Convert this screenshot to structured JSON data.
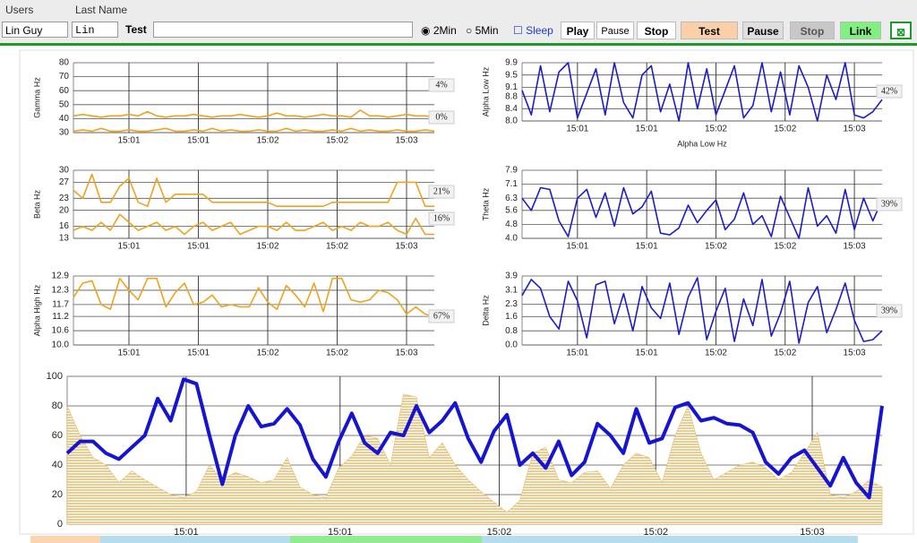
{
  "toolbar": {
    "users_label": "Users",
    "lastname_label": "Last Name",
    "user": "Lin Guy",
    "lastname": "Lin",
    "session_label": "Test",
    "radio_2min": "2Min",
    "radio_5min": "5Min",
    "sleep": "Sleep",
    "play": "Play",
    "pause": "Pause",
    "stop": "Stop",
    "test": "Test",
    "pause2": "Pause",
    "stop2": "Stop",
    "link": "Link"
  },
  "chart_data": [
    {
      "type": "line",
      "ylabel": "Gamma Hz",
      "ylim": [
        30,
        80
      ],
      "yticks": [
        30,
        40,
        50,
        60,
        70,
        80
      ],
      "xlim": [
        0,
        39
      ],
      "xticks": [
        {
          "value": 6,
          "label": "15:01"
        },
        {
          "value": 13.5,
          "label": "15:01"
        },
        {
          "value": 21,
          "label": "15:02"
        },
        {
          "value": 28.5,
          "label": "15:02"
        },
        {
          "value": 36,
          "label": "15:03"
        }
      ],
      "annotations": [
        "4%",
        "0%"
      ],
      "grid": true,
      "series": [
        {
          "color": "#f0a21e",
          "values": [
            42,
            43,
            42,
            41,
            42,
            42,
            43,
            42,
            45,
            42,
            41,
            42,
            42,
            43,
            42,
            41,
            42,
            42,
            43,
            42,
            41,
            42,
            44,
            42,
            42,
            41,
            42,
            43,
            42,
            42,
            41,
            46,
            42,
            42,
            41,
            42,
            43,
            42,
            42,
            41
          ]
        },
        {
          "color": "#f0a21e",
          "values": [
            31,
            32,
            31,
            33,
            31,
            31,
            32,
            31,
            31,
            32,
            33,
            31,
            31,
            32,
            31,
            33,
            31,
            32,
            31,
            31,
            32,
            31,
            31,
            33,
            31,
            32,
            31,
            31,
            32,
            31,
            33,
            31,
            32,
            31,
            31,
            32,
            31,
            31,
            32,
            31
          ]
        }
      ]
    },
    {
      "type": "line",
      "ylabel": "Alpha Low Hz",
      "xlabel": "Alpha Low Hz",
      "ylim": [
        8.0,
        9.9
      ],
      "yticks": [
        {
          "value": 8.0,
          "label": "8.0"
        },
        {
          "value": 8.4,
          "label": "8.4"
        },
        8.8,
        9.1,
        9.5,
        9.9
      ],
      "xlim": [
        0,
        39
      ],
      "xticks": [
        {
          "value": 6,
          "label": "15:01"
        },
        {
          "value": 13.5,
          "label": "15:01"
        },
        {
          "value": 21,
          "label": "15:02"
        },
        {
          "value": 28.5,
          "label": "15:02"
        },
        {
          "value": 36,
          "label": "15:03"
        }
      ],
      "annotations": [
        "42%"
      ],
      "grid": true,
      "series": [
        {
          "color": "#1c1cc8",
          "values": [
            9.0,
            8.2,
            9.8,
            8.3,
            9.6,
            9.9,
            8.1,
            8.9,
            9.7,
            8.2,
            9.9,
            8.6,
            8.1,
            9.5,
            9.8,
            8.3,
            9.2,
            8.0,
            9.9,
            8.4,
            9.7,
            8.2,
            9.0,
            9.8,
            8.1,
            8.5,
            9.9,
            8.3,
            9.6,
            8.2,
            9.8,
            9.1,
            8.0,
            9.5,
            8.7,
            9.9,
            8.2,
            8.1,
            8.3,
            8.7
          ]
        }
      ]
    },
    {
      "type": "line",
      "ylabel": "Beta Hz",
      "ylim": [
        13,
        30
      ],
      "yticks": [
        13,
        16,
        20,
        23,
        27,
        30
      ],
      "xlim": [
        0,
        39
      ],
      "xticks": [
        {
          "value": 6,
          "label": "15:01"
        },
        {
          "value": 13.5,
          "label": "15:01"
        },
        {
          "value": 21,
          "label": "15:02"
        },
        {
          "value": 28.5,
          "label": "15:02"
        },
        {
          "value": 36,
          "label": "15:03"
        }
      ],
      "annotations": [
        "21%",
        "16%"
      ],
      "grid": true,
      "series": [
        {
          "color": "#f0a21e",
          "values": [
            25,
            23,
            29,
            22,
            22,
            26,
            28,
            22,
            21,
            28,
            22,
            24,
            24,
            24,
            24,
            22,
            22,
            22,
            22,
            22,
            22,
            22,
            21,
            21,
            21,
            21,
            21,
            21,
            22,
            22,
            22,
            22,
            22,
            22,
            22,
            27,
            27,
            27,
            21,
            21
          ]
        },
        {
          "color": "#f0a21e",
          "values": [
            15,
            16,
            15,
            17,
            15,
            19,
            17,
            15,
            16,
            17,
            15,
            16,
            14,
            16,
            17,
            15,
            16,
            17,
            14,
            15,
            16,
            16,
            15,
            17,
            15,
            15,
            16,
            17,
            15,
            16,
            15,
            17,
            16,
            16,
            17,
            15,
            14,
            18,
            14,
            14
          ]
        }
      ]
    },
    {
      "type": "line",
      "ylabel": "Theta Hz",
      "ylim": [
        4.0,
        7.9
      ],
      "yticks": [
        {
          "value": 4.0,
          "label": "4.0"
        },
        4.8,
        5.6,
        6.3,
        7.1,
        7.9
      ],
      "xlim": [
        0,
        39
      ],
      "xticks": [
        {
          "value": 6,
          "label": "15:01"
        },
        {
          "value": 13.5,
          "label": "15:01"
        },
        {
          "value": 21,
          "label": "15:02"
        },
        {
          "value": 28.5,
          "label": "15:02"
        },
        {
          "value": 36,
          "label": "15:03"
        }
      ],
      "annotations": [
        "39%"
      ],
      "grid": true,
      "series": [
        {
          "color": "#1c1cc8",
          "values": [
            6.3,
            5.6,
            6.9,
            6.8,
            5.0,
            4.1,
            6.3,
            6.8,
            5.2,
            6.6,
            4.7,
            6.9,
            5.4,
            5.8,
            6.7,
            4.3,
            4.2,
            4.6,
            5.9,
            4.9,
            5.6,
            6.2,
            4.5,
            5.1,
            6.6,
            4.8,
            5.3,
            4.1,
            6.4,
            5.2,
            4.0,
            6.9,
            4.7,
            5.3,
            4.3,
            6.8,
            4.5,
            6.3,
            5.0,
            6.2
          ]
        }
      ]
    },
    {
      "type": "line",
      "ylabel": "Alpha High Hz",
      "ylim": [
        10.0,
        12.9
      ],
      "yticks": [
        {
          "value": 10.0,
          "label": "10.0"
        },
        10.6,
        11.2,
        11.7,
        12.3,
        12.9
      ],
      "xlim": [
        0,
        39
      ],
      "xticks": [
        {
          "value": 6,
          "label": "15:01"
        },
        {
          "value": 13.5,
          "label": "15:01"
        },
        {
          "value": 21,
          "label": "15:02"
        },
        {
          "value": 28.5,
          "label": "15:02"
        },
        {
          "value": 36,
          "label": "15:03"
        }
      ],
      "annotations": [
        "67%"
      ],
      "grid": true,
      "series": [
        {
          "color": "#f0a21e",
          "values": [
            12.0,
            12.6,
            12.7,
            11.7,
            11.5,
            12.8,
            12.3,
            11.9,
            12.8,
            12.8,
            11.6,
            12.2,
            12.6,
            11.7,
            11.8,
            12.1,
            11.6,
            11.7,
            11.6,
            11.6,
            12.4,
            11.8,
            11.5,
            12.5,
            12.1,
            11.6,
            12.6,
            11.4,
            12.8,
            12.8,
            11.9,
            11.8,
            11.9,
            12.3,
            12.2,
            11.9,
            11.3,
            11.6,
            11.3,
            11.2
          ]
        }
      ]
    },
    {
      "type": "line",
      "ylabel": "Delta Hz",
      "ylim": [
        0.0,
        3.9
      ],
      "yticks": [
        {
          "value": 0.0,
          "label": "0.0"
        },
        0.8,
        1.6,
        2.3,
        3.1,
        3.9
      ],
      "xlim": [
        0,
        39
      ],
      "xticks": [
        {
          "value": 6,
          "label": "15:01"
        },
        {
          "value": 13.5,
          "label": "15:01"
        },
        {
          "value": 21,
          "label": "15:02"
        },
        {
          "value": 28.5,
          "label": "15:02"
        },
        {
          "value": 36,
          "label": "15:03"
        }
      ],
      "annotations": [
        "39%"
      ],
      "grid": true,
      "series": [
        {
          "color": "#1c1cc8",
          "values": [
            2.8,
            3.7,
            3.2,
            1.6,
            0.9,
            3.6,
            2.5,
            0.4,
            3.4,
            3.6,
            1.2,
            2.9,
            0.8,
            3.3,
            2.1,
            1.5,
            3.5,
            0.6,
            2.7,
            3.8,
            0.3,
            1.9,
            3.2,
            0.2,
            2.6,
            1.1,
            3.7,
            0.5,
            1.8,
            3.6,
            0.1,
            2.4,
            3.3,
            0.7,
            2.0,
            3.5,
            1.4,
            0.2,
            0.3,
            0.8
          ]
        }
      ]
    },
    {
      "type": "combo",
      "ylim": [
        0,
        100
      ],
      "yticks": [
        0,
        20,
        40,
        60,
        80,
        100
      ],
      "xlim": [
        0,
        63
      ],
      "xticks": [
        {
          "value": 9.2,
          "label": "15:01"
        },
        {
          "value": 21.1,
          "label": "15:01"
        },
        {
          "value": 33.4,
          "label": "15:02"
        },
        {
          "value": 45.5,
          "label": "15:02"
        },
        {
          "value": 57.6,
          "label": "15:03"
        }
      ],
      "grid": true,
      "series": [
        {
          "type": "area",
          "color": "#e2b862",
          "values": [
            80,
            60,
            45,
            40,
            28,
            36,
            30,
            25,
            20,
            18,
            22,
            40,
            30,
            35,
            32,
            28,
            30,
            45,
            25,
            20,
            18,
            38,
            46,
            60,
            58,
            40,
            88,
            86,
            45,
            55,
            40,
            30,
            22,
            15,
            8,
            16,
            48,
            52,
            30,
            28,
            35,
            36,
            24,
            40,
            48,
            45,
            28,
            60,
            80,
            48,
            30,
            35,
            40,
            42,
            38,
            30,
            35,
            48,
            62,
            20,
            18,
            22,
            30,
            25
          ]
        },
        {
          "type": "line",
          "color": "#1414d2",
          "values": [
            48,
            56,
            56,
            48,
            44,
            52,
            60,
            85,
            70,
            98,
            95,
            60,
            27,
            60,
            80,
            66,
            68,
            78,
            67,
            44,
            32,
            56,
            75,
            55,
            48,
            62,
            60,
            80,
            62,
            70,
            82,
            58,
            42,
            63,
            74,
            40,
            48,
            38,
            56,
            33,
            42,
            68,
            60,
            48,
            78,
            55,
            58,
            79,
            82,
            70,
            72,
            68,
            67,
            62,
            42,
            34,
            45,
            50,
            38,
            26,
            45,
            28,
            18,
            80
          ]
        }
      ]
    }
  ]
}
